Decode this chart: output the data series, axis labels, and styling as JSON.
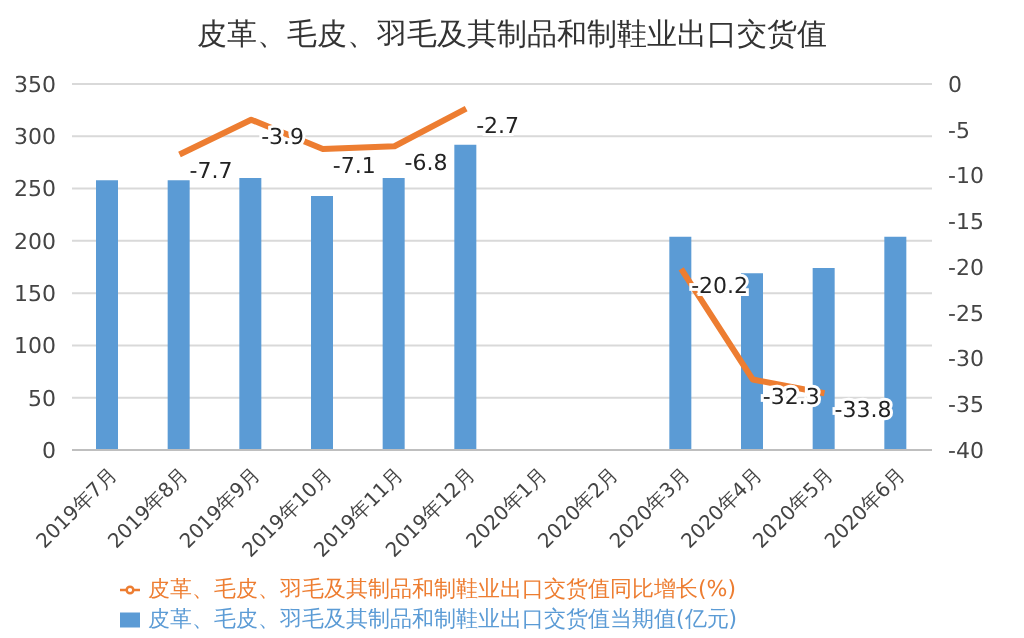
{
  "chart_data": {
    "type": "bar",
    "title": "皮革、毛皮、羽毛及其制品和制鞋业出口交货值",
    "categories": [
      "2019年7月",
      "2019年8月",
      "2019年9月",
      "2019年10月",
      "2019年11月",
      "2019年12月",
      "2020年1月",
      "2020年2月",
      "2020年3月",
      "2020年4月",
      "2020年5月",
      "2020年6月"
    ],
    "series": [
      {
        "name": "皮革、毛皮、羽毛及其制品和制鞋业出口交货值当期值(亿元)",
        "color": "#5b9bd5",
        "values": [
          258,
          258,
          260,
          243,
          260,
          292,
          null,
          null,
          204,
          169,
          174,
          204
        ]
      },
      {
        "name": "皮革、毛皮、羽毛及其制品和制鞋业出口交货值同比增长(%)",
        "type": "line",
        "axis": "y2",
        "color": "#ed7d31",
        "values": [
          null,
          -7.7,
          -3.9,
          -7.1,
          -6.8,
          -2.7,
          null,
          null,
          -20.2,
          -32.3,
          -33.8,
          null
        ],
        "value_labels": [
          null,
          "-7.7",
          "-3.9",
          "-7.1",
          "-6.8",
          "-2.7",
          null,
          null,
          "-20.2",
          "-32.3",
          "-33.8",
          null
        ]
      }
    ],
    "ylim": [
      0,
      350
    ],
    "yticks": [
      0,
      50,
      100,
      150,
      200,
      250,
      300,
      350
    ],
    "y2lim": [
      -40,
      0
    ],
    "y2ticks": [
      -40,
      -35,
      -30,
      -25,
      -20,
      -15,
      -10,
      -5,
      0
    ],
    "grid": "y",
    "legend": "bottom",
    "marker": "none"
  }
}
